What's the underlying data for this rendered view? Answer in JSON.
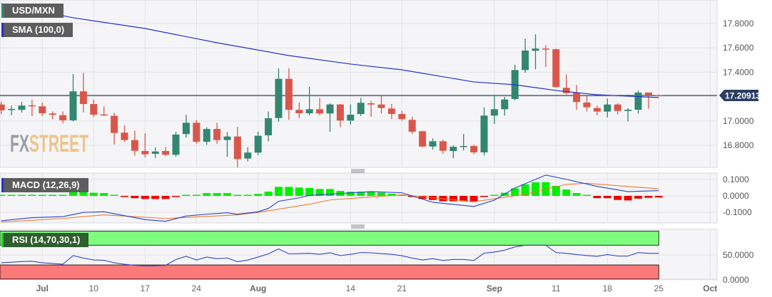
{
  "symbol_label": "USD/MXN",
  "sma_label": "SMA (100,0)",
  "macd_label": "MACD (12,26,9)",
  "rsi_label": "RSI (14,70,30,1)",
  "watermark": {
    "part1": "FX",
    "part2": "STREET"
  },
  "current_price": "17.20913",
  "colors": {
    "up": "#338670",
    "down": "#d9574a",
    "sma": "#2233cc",
    "macd": "#2244cc",
    "signal": "#f07b2a",
    "hist_up": "#00ee00",
    "hist_down": "#ee0000",
    "overbought_zone": "#7efc7e",
    "oversold_zone": "#fc7a7a",
    "price_line": "#1f2d5a"
  },
  "chart_data": [
    {
      "type": "candlestick",
      "title": "USD/MXN",
      "ylim": [
        16.6,
        18.0
      ],
      "yticks": [
        "17.8000",
        "17.6000",
        "17.4000",
        "17.2000",
        "17.0000",
        "16.8000"
      ],
      "ytick_values": [
        17.8,
        17.6,
        17.4,
        17.2,
        17.0,
        16.8
      ],
      "xticks": [
        {
          "label": "Jul",
          "index": 4,
          "bold": true
        },
        {
          "label": "10",
          "index": 9
        },
        {
          "label": "17",
          "index": 14
        },
        {
          "label": "24",
          "index": 19
        },
        {
          "label": "Aug",
          "index": 25,
          "bold": true
        },
        {
          "label": "14",
          "index": 34
        },
        {
          "label": "21",
          "index": 39
        },
        {
          "label": "Sep",
          "index": 48,
          "bold": true
        },
        {
          "label": "11",
          "index": 54
        },
        {
          "label": "18",
          "index": 59
        },
        {
          "label": "25",
          "index": 64
        },
        {
          "label": "Oct",
          "index": 69,
          "bold": true
        }
      ],
      "ohlc": [
        [
          17.135,
          17.157,
          17.057,
          17.087
        ],
        [
          17.094,
          17.127,
          17.046,
          17.098
        ],
        [
          17.091,
          17.157,
          17.069,
          17.126
        ],
        [
          17.128,
          17.174,
          17.04,
          17.124
        ],
        [
          17.12,
          17.151,
          17.04,
          17.063
        ],
        [
          17.061,
          17.077,
          17.015,
          17.05
        ],
        [
          17.047,
          17.077,
          16.98,
          17.005
        ],
        [
          17.005,
          17.385,
          16.995,
          17.243
        ],
        [
          17.243,
          17.395,
          17.071,
          17.139
        ],
        [
          17.139,
          17.174,
          17.034,
          17.051
        ],
        [
          17.053,
          17.12,
          17.042,
          17.046
        ],
        [
          17.042,
          17.067,
          16.808,
          16.901
        ],
        [
          16.904,
          16.964,
          16.827,
          16.843
        ],
        [
          16.843,
          16.921,
          16.716,
          16.755
        ],
        [
          16.753,
          16.898,
          16.702,
          16.726
        ],
        [
          16.73,
          16.781,
          16.696,
          16.749
        ],
        [
          16.753,
          16.784,
          16.711,
          16.722
        ],
        [
          16.722,
          16.911,
          16.706,
          16.888
        ],
        [
          16.892,
          17.051,
          16.863,
          16.985
        ],
        [
          16.985,
          17.006,
          16.813,
          16.829
        ],
        [
          16.829,
          16.948,
          16.804,
          16.934
        ],
        [
          16.934,
          16.985,
          16.813,
          16.843
        ],
        [
          16.843,
          16.909,
          16.706,
          16.872
        ],
        [
          16.872,
          16.95,
          16.619,
          16.687
        ],
        [
          16.691,
          16.784,
          16.667,
          16.74
        ],
        [
          16.74,
          16.911,
          16.72,
          16.878
        ],
        [
          16.882,
          17.077,
          16.833,
          17.022
        ],
        [
          17.024,
          17.432,
          16.993,
          17.346
        ],
        [
          17.346,
          17.432,
          17.009,
          17.091
        ],
        [
          17.091,
          17.151,
          17.024,
          17.063
        ],
        [
          17.063,
          17.281,
          17.047,
          17.096
        ],
        [
          17.096,
          17.188,
          17.047,
          17.061
        ],
        [
          17.061,
          17.145,
          16.911,
          17.135
        ],
        [
          17.135,
          17.139,
          16.95,
          17.003
        ],
        [
          17.003,
          17.135,
          16.97,
          17.051
        ],
        [
          17.057,
          17.188,
          17.042,
          17.149
        ],
        [
          17.145,
          17.164,
          17.034,
          17.135
        ],
        [
          17.135,
          17.208,
          17.061,
          17.106
        ],
        [
          17.102,
          17.139,
          17.015,
          17.057
        ],
        [
          17.057,
          17.081,
          17.003,
          17.015
        ],
        [
          17.009,
          17.034,
          16.892,
          16.911
        ],
        [
          16.915,
          16.921,
          16.781,
          16.79
        ],
        [
          16.79,
          16.857,
          16.765,
          16.833
        ],
        [
          16.833,
          16.847,
          16.73,
          16.755
        ],
        [
          16.753,
          16.8,
          16.693,
          16.788
        ],
        [
          16.79,
          16.892,
          16.759,
          16.794
        ],
        [
          16.794,
          16.804,
          16.726,
          16.742
        ],
        [
          16.742,
          17.112,
          16.718,
          17.044
        ],
        [
          17.044,
          17.209,
          16.975,
          17.096
        ],
        [
          17.096,
          17.198,
          17.044,
          17.176
        ],
        [
          17.18,
          17.461,
          17.17,
          17.418
        ],
        [
          17.418,
          17.675,
          17.395,
          17.578
        ],
        [
          17.576,
          17.711,
          17.424,
          17.594
        ],
        [
          17.594,
          17.623,
          17.443,
          17.591
        ],
        [
          17.589,
          17.594,
          17.272,
          17.278
        ],
        [
          17.272,
          17.383,
          17.217,
          17.229
        ],
        [
          17.233,
          17.295,
          17.092,
          17.155
        ],
        [
          17.151,
          17.204,
          17.077,
          17.112
        ],
        [
          17.106,
          17.126,
          17.047,
          17.077
        ],
        [
          17.077,
          17.184,
          17.028,
          17.135
        ],
        [
          17.135,
          17.145,
          17.053,
          17.082
        ],
        [
          17.082,
          17.106,
          16.995,
          17.092
        ],
        [
          17.092,
          17.249,
          17.061,
          17.233
        ],
        [
          17.233,
          17.233,
          17.1,
          17.209
        ],
        [
          17.212,
          17.216,
          17.206,
          17.209
        ]
      ],
      "sma_100": [
        [
          0,
          17.964
        ],
        [
          7,
          17.847
        ],
        [
          14,
          17.759
        ],
        [
          21,
          17.642
        ],
        [
          28,
          17.537
        ],
        [
          34,
          17.467
        ],
        [
          39,
          17.42
        ],
        [
          46,
          17.32
        ],
        [
          50,
          17.297
        ],
        [
          54,
          17.25
        ],
        [
          58,
          17.215
        ],
        [
          64,
          17.192
        ]
      ]
    },
    {
      "type": "bar+line",
      "title": "MACD (12,26,9)",
      "ylim": [
        -0.165,
        0.14
      ],
      "yticks": [
        "0.1000",
        "0.0000",
        "-0.1000"
      ],
      "ytick_values": [
        0.1,
        0,
        -0.1
      ],
      "histogram": [
        0.004,
        0.004,
        0.004,
        0.004,
        0.004,
        0.004,
        0.004,
        0.025,
        0.025,
        0.019,
        0.017,
        0.003,
        -0.002,
        -0.014,
        -0.019,
        -0.019,
        -0.019,
        -0.004,
        0.004,
        0.004,
        0.017,
        0.017,
        0.017,
        0.004,
        0.002,
        0.012,
        0.026,
        0.055,
        0.055,
        0.051,
        0.048,
        0.042,
        0.042,
        0.03,
        0.025,
        0.025,
        0.025,
        0.02,
        0.013,
        0.003,
        -0.004,
        -0.019,
        -0.025,
        -0.033,
        -0.033,
        -0.033,
        -0.033,
        -0.005,
        0.002,
        0.019,
        0.046,
        0.07,
        0.083,
        0.084,
        0.061,
        0.039,
        0.017,
        0.001,
        -0.014,
        -0.014,
        -0.025,
        -0.028,
        -0.017,
        -0.012,
        -0.01
      ],
      "macd": [
        [
          0,
          -0.152
        ],
        [
          3,
          -0.133
        ],
        [
          6,
          -0.127
        ],
        [
          8,
          -0.101
        ],
        [
          10,
          -0.097
        ],
        [
          14,
          -0.145
        ],
        [
          16,
          -0.155
        ],
        [
          18,
          -0.123
        ],
        [
          20,
          -0.112
        ],
        [
          22,
          -0.103
        ],
        [
          23,
          -0.112
        ],
        [
          25,
          -0.097
        ],
        [
          26,
          -0.077
        ],
        [
          27,
          -0.033
        ],
        [
          29,
          -0.012
        ],
        [
          30,
          0.003
        ],
        [
          32,
          0.01
        ],
        [
          36,
          0.026
        ],
        [
          39,
          0.019
        ],
        [
          42,
          -0.039
        ],
        [
          46,
          -0.065
        ],
        [
          48,
          -0.026
        ],
        [
          50,
          0.048
        ],
        [
          53,
          0.127
        ],
        [
          55,
          0.101
        ],
        [
          58,
          0.058
        ],
        [
          61,
          0.026
        ],
        [
          64,
          0.032
        ]
      ],
      "signal": [
        [
          0,
          -0.16
        ],
        [
          6,
          -0.138
        ],
        [
          10,
          -0.116
        ],
        [
          16,
          -0.138
        ],
        [
          23,
          -0.116
        ],
        [
          25,
          -0.101
        ],
        [
          30,
          -0.051
        ],
        [
          32,
          -0.025
        ],
        [
          39,
          0.007
        ],
        [
          46,
          -0.036
        ],
        [
          51,
          0.01
        ],
        [
          55,
          0.07
        ],
        [
          57,
          0.077
        ],
        [
          64,
          0.043
        ]
      ]
    },
    {
      "type": "line",
      "title": "RSI (14,70,30,1)",
      "ylim": [
        0,
        100
      ],
      "yticks": [
        "50.0000",
        "0.0000"
      ],
      "ytick_values": [
        50,
        0
      ],
      "overbought": 70,
      "oversold": 30,
      "values": [
        34.4,
        35.5,
        37,
        37.5,
        34.4,
        33,
        31.6,
        49,
        44,
        40.1,
        39.5,
        34.4,
        31.5,
        29.2,
        28.2,
        28.5,
        29.2,
        41.1,
        47.6,
        40.1,
        46,
        42.7,
        44.1,
        36.6,
        40.1,
        46,
        52.6,
        62.5,
        52.6,
        53,
        53.6,
        51.6,
        54.6,
        49,
        51.6,
        55.1,
        54.6,
        53,
        51.6,
        48.7,
        44,
        40.1,
        42.7,
        39.1,
        41.1,
        41.1,
        39.1,
        54,
        56.1,
        60.1,
        66.6,
        70,
        70,
        70,
        55.1,
        53.6,
        51.1,
        49.1,
        47.6,
        51.1,
        48.1,
        48.1,
        55.1,
        53.6,
        53.6
      ]
    }
  ]
}
